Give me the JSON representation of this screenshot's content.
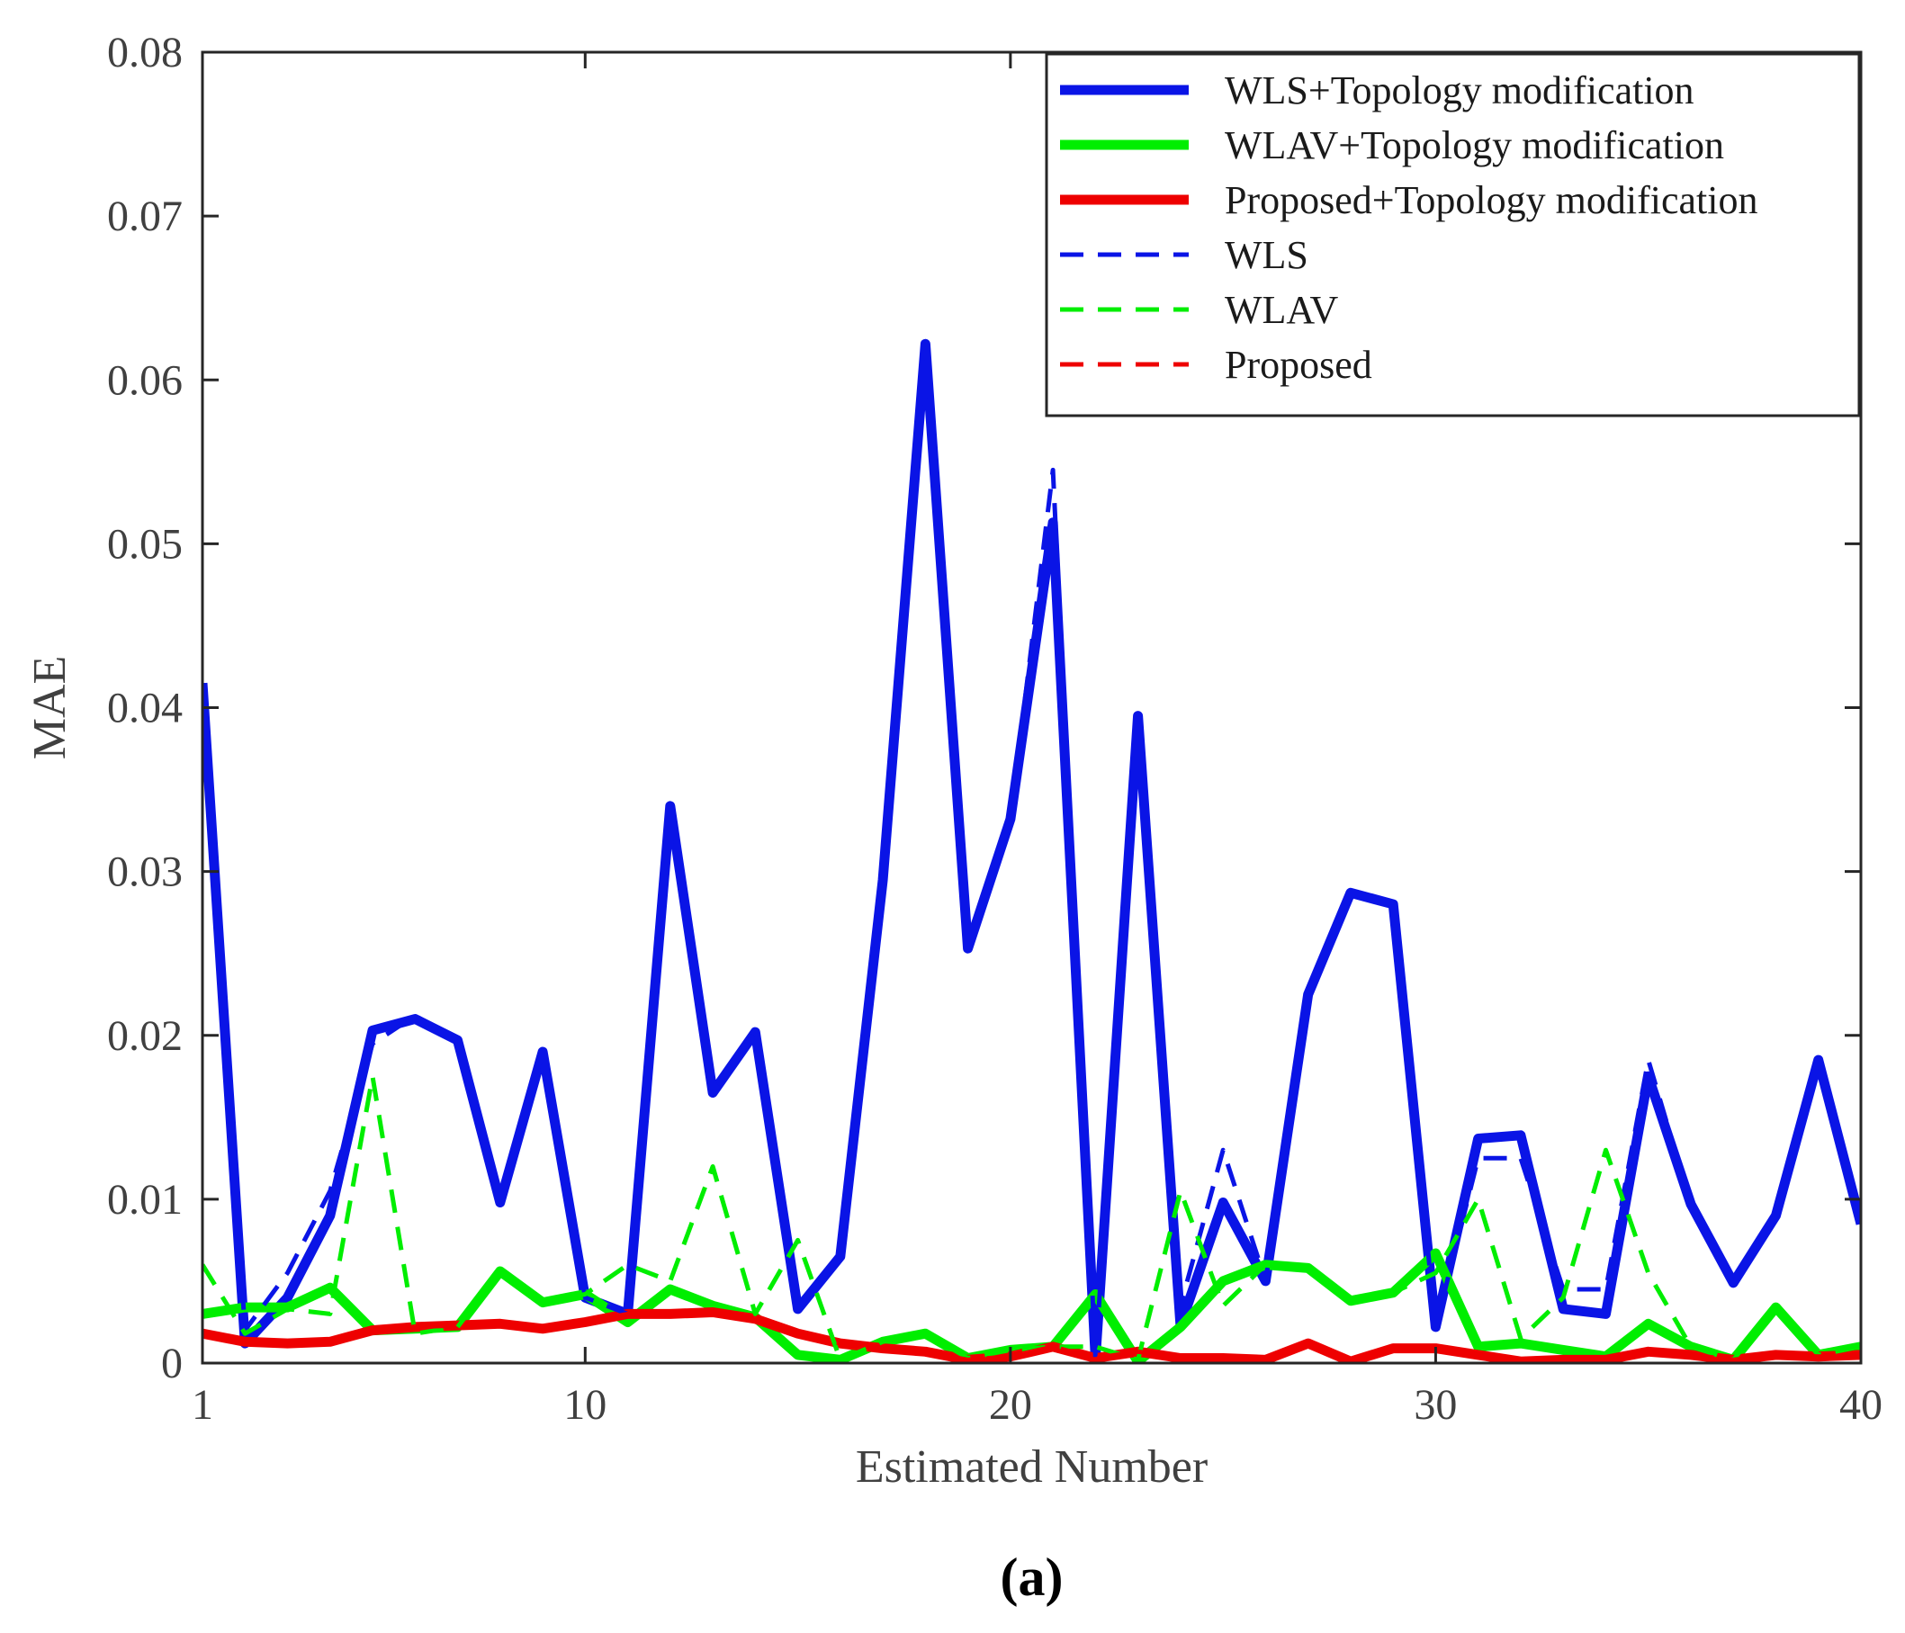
{
  "chart_data": {
    "type": "line",
    "xlabel": "Estimated Number",
    "ylabel": "MAE",
    "caption": "(a)",
    "xlim": [
      1,
      40
    ],
    "ylim": [
      0,
      0.08
    ],
    "xticks": [
      1,
      10,
      20,
      30,
      40
    ],
    "xtick_labels": [
      "1",
      "10",
      "20",
      "30",
      "40"
    ],
    "yticks": [
      0,
      0.01,
      0.02,
      0.03,
      0.04,
      0.05,
      0.06,
      0.07,
      0.08
    ],
    "ytick_labels": [
      "0",
      "0.01",
      "0.02",
      "0.03",
      "0.04",
      "0.05",
      "0.06",
      "0.07",
      "0.08"
    ],
    "legend_position": "top-right",
    "x": [
      1,
      2,
      3,
      4,
      5,
      6,
      7,
      8,
      9,
      10,
      11,
      12,
      13,
      14,
      15,
      16,
      17,
      18,
      19,
      20,
      21,
      22,
      23,
      24,
      25,
      26,
      27,
      28,
      29,
      30,
      31,
      32,
      33,
      34,
      35,
      36,
      37,
      38,
      39,
      40
    ],
    "series": [
      {
        "name": "WLS+Topology modification",
        "color": "#0a14e6",
        "style": "solid",
        "values": [
          0.0415,
          0.0012,
          0.004,
          0.009,
          0.0203,
          0.021,
          0.0197,
          0.0098,
          0.019,
          0.004,
          0.003,
          0.034,
          0.0165,
          0.0202,
          0.0033,
          0.0065,
          0.0295,
          0.0622,
          0.0253,
          0.0332,
          0.0513,
          0.0003,
          0.0395,
          0.0023,
          0.0098,
          0.005,
          0.0225,
          0.0287,
          0.028,
          0.0022,
          0.0137,
          0.0139,
          0.0033,
          0.003,
          0.0175,
          0.0097,
          0.0049,
          0.009,
          0.0185,
          0.0085
        ]
      },
      {
        "name": "WLAV+Topology modification",
        "color": "#00ee00",
        "style": "solid",
        "values": [
          0.003,
          0.0034,
          0.0034,
          0.0046,
          0.002,
          0.0021,
          0.0022,
          0.0056,
          0.0037,
          0.0042,
          0.0025,
          0.0045,
          0.0035,
          0.0028,
          0.0005,
          0.0002,
          0.0013,
          0.0018,
          0.0003,
          0.0008,
          0.001,
          0.0042,
          0.0001,
          0.0022,
          0.005,
          0.006,
          0.0058,
          0.0038,
          0.0043,
          0.0067,
          0.001,
          0.0012,
          0.0008,
          0.0004,
          0.0024,
          0.001,
          0.0002,
          0.0034,
          0.0005,
          0.001
        ]
      },
      {
        "name": "Proposed+Topology modification",
        "color": "#ee0000",
        "style": "solid",
        "values": [
          0.0018,
          0.0013,
          0.0012,
          0.0013,
          0.002,
          0.0022,
          0.0023,
          0.0024,
          0.0021,
          0.0025,
          0.003,
          0.003,
          0.0031,
          0.0027,
          0.0018,
          0.0012,
          0.0009,
          0.0007,
          0.0002,
          0.0004,
          0.001,
          0.0003,
          0.0007,
          0.0003,
          0.0003,
          0.0002,
          0.0012,
          0.0001,
          0.0009,
          0.0009,
          0.0005,
          0.0001,
          0.0002,
          0.0002,
          0.0007,
          0.0005,
          0.0002,
          0.0005,
          0.0004,
          0.0005
        ]
      },
      {
        "name": "WLS",
        "color": "#0a14e6",
        "style": "dashed",
        "values": [
          0.0415,
          0.002,
          0.0055,
          0.0105,
          0.0195,
          0.0212,
          0.0197,
          0.0098,
          0.019,
          0.004,
          0.003,
          0.034,
          0.0165,
          0.0202,
          0.0033,
          0.0065,
          0.0295,
          0.0622,
          0.0253,
          0.0332,
          0.0545,
          0.0003,
          0.0395,
          0.0035,
          0.013,
          0.005,
          0.0225,
          0.0287,
          0.028,
          0.0022,
          0.0125,
          0.0125,
          0.0045,
          0.0045,
          0.0185,
          0.0097,
          0.0049,
          0.009,
          0.0185,
          0.0085
        ]
      },
      {
        "name": "WLAV",
        "color": "#00ee00",
        "style": "dashed",
        "values": [
          0.006,
          0.0018,
          0.0033,
          0.003,
          0.0175,
          0.0018,
          0.0022,
          0.0056,
          0.0037,
          0.0042,
          0.006,
          0.005,
          0.012,
          0.003,
          0.0075,
          0.0002,
          0.0013,
          0.0018,
          0.0003,
          0.0008,
          0.001,
          0.001,
          0.0002,
          0.0105,
          0.0035,
          0.006,
          0.0058,
          0.0038,
          0.0043,
          0.0055,
          0.01,
          0.0015,
          0.004,
          0.013,
          0.0055,
          0.001,
          0.0002,
          0.0034,
          0.0005,
          0.001
        ]
      },
      {
        "name": "Proposed",
        "color": "#ee0000",
        "style": "dashed",
        "values": [
          0.0018,
          0.0013,
          0.0012,
          0.0013,
          0.002,
          0.0022,
          0.0023,
          0.0024,
          0.0021,
          0.0025,
          0.003,
          0.003,
          0.0031,
          0.0027,
          0.0018,
          0.0012,
          0.0009,
          0.0007,
          0.0002,
          0.0004,
          0.001,
          0.0003,
          0.0007,
          0.0003,
          0.0003,
          0.0002,
          0.0012,
          0.0001,
          0.0009,
          0.0009,
          0.0005,
          0.0001,
          0.0002,
          0.0002,
          0.0007,
          0.0005,
          0.0002,
          0.0005,
          0.0004,
          0.0005
        ]
      }
    ]
  }
}
